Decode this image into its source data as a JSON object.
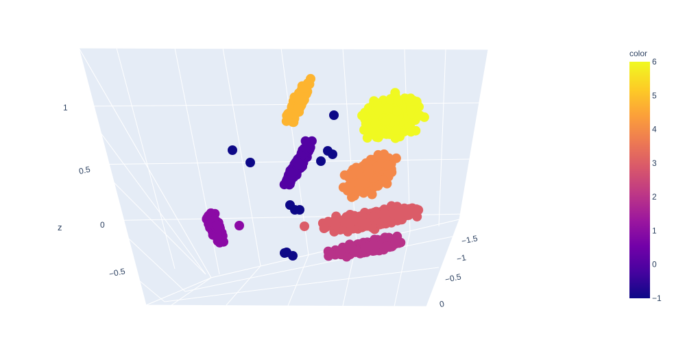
{
  "chart_data": {
    "type": "scatter",
    "projection": "3d",
    "axes": {
      "z": {
        "label": "z",
        "ticks": [
          "1",
          "0.5",
          "0",
          "−0.5"
        ]
      },
      "y": {
        "ticks": [
          "−1.5",
          "−1",
          "−0.5",
          "0"
        ]
      }
    },
    "colorbar": {
      "title": "color",
      "ticks": [
        "6",
        "5",
        "4",
        "3",
        "2",
        "1",
        "0",
        "−1"
      ],
      "range": [
        -1,
        6
      ],
      "colorscale": [
        "#0d0887",
        "#46039f",
        "#7201a8",
        "#9c179e",
        "#bd3786",
        "#d8576b",
        "#ed7953",
        "#fb9f3a",
        "#fdca26",
        "#f0f921"
      ]
    },
    "clusters": [
      {
        "color_value": 6,
        "color": "#f0f921",
        "points": 650
      },
      {
        "color_value": 5,
        "color": "#fdb42f",
        "points": 200
      },
      {
        "color_value": 4,
        "color": "#f48849",
        "points": 300
      },
      {
        "color_value": 3,
        "color": "#db5c68",
        "points": 500
      },
      {
        "color_value": 2,
        "color": "#b83289",
        "points": 300
      },
      {
        "color_value": 1,
        "color": "#8b0aa5",
        "points": 150
      },
      {
        "color_value": 0,
        "color": "#5302a3",
        "points": 250
      },
      {
        "color_value": -1,
        "color": "#0d0887",
        "points": 14
      }
    ],
    "grid": true
  }
}
